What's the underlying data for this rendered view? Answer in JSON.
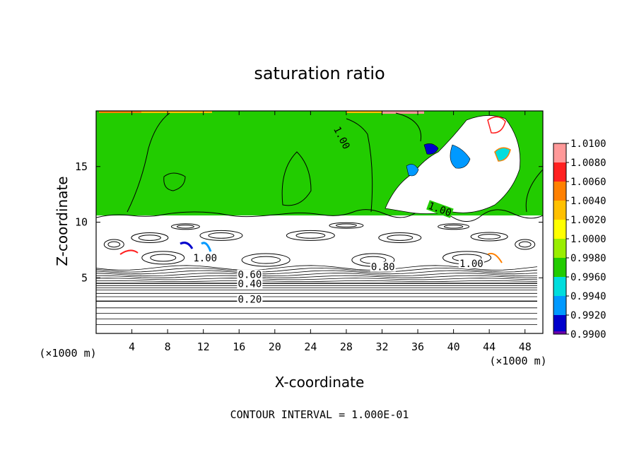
{
  "chart_data": {
    "type": "heatmap",
    "title": "saturation ratio",
    "xlabel": "X-coordinate",
    "ylabel": "Z-coordinate",
    "x_unit": "(×1000 m)",
    "x_unit_right": "(×1000 m)",
    "x_ticks": [
      4,
      8,
      12,
      16,
      20,
      24,
      28,
      32,
      36,
      40,
      44,
      48
    ],
    "y_ticks": [
      5,
      10,
      15
    ],
    "xlim": [
      0,
      50
    ],
    "ylim": [
      0,
      20
    ],
    "footer": "CONTOUR INTERVAL = 1.000E-01",
    "colorbar": {
      "labels": [
        "1.0100",
        "1.0080",
        "1.0060",
        "1.0040",
        "1.0020",
        "1.0000",
        "0.9980",
        "0.9960",
        "0.9940",
        "0.9920",
        "0.9900"
      ],
      "colors": [
        "#ff9999",
        "#ff2020",
        "#ff8000",
        "#ffc000",
        "#ffff00",
        "#99ee00",
        "#22cc00",
        "#00dddd",
        "#0099ff",
        "#0000cc",
        "#6a00aa"
      ]
    },
    "contour_labels": [
      {
        "text": "1.00",
        "x": 27.3,
        "y": 17.5,
        "angle": 63
      },
      {
        "text": "1.00",
        "x": 38.4,
        "y": 11.0,
        "angle": 20
      },
      {
        "text": "1.00",
        "x": 12.2,
        "y": 6.6,
        "angle": 0
      },
      {
        "text": "1.00",
        "x": 42.0,
        "y": 6.1,
        "angle": 0
      },
      {
        "text": "0.80",
        "x": 32.1,
        "y": 5.8,
        "angle": 0
      },
      {
        "text": "0.60",
        "x": 17.2,
        "y": 5.1,
        "angle": 0
      },
      {
        "text": "0.40",
        "x": 17.2,
        "y": 4.3,
        "angle": 0
      },
      {
        "text": "0.20",
        "x": 17.2,
        "y": 2.9,
        "angle": 0
      }
    ],
    "layers": {
      "saturated_region": "z >= 10.3 (saturation ratio ≈ 1.0000)",
      "subsaturated_region": "z < 10.3 (saturation ratio 0.1 – 1.0)"
    }
  }
}
